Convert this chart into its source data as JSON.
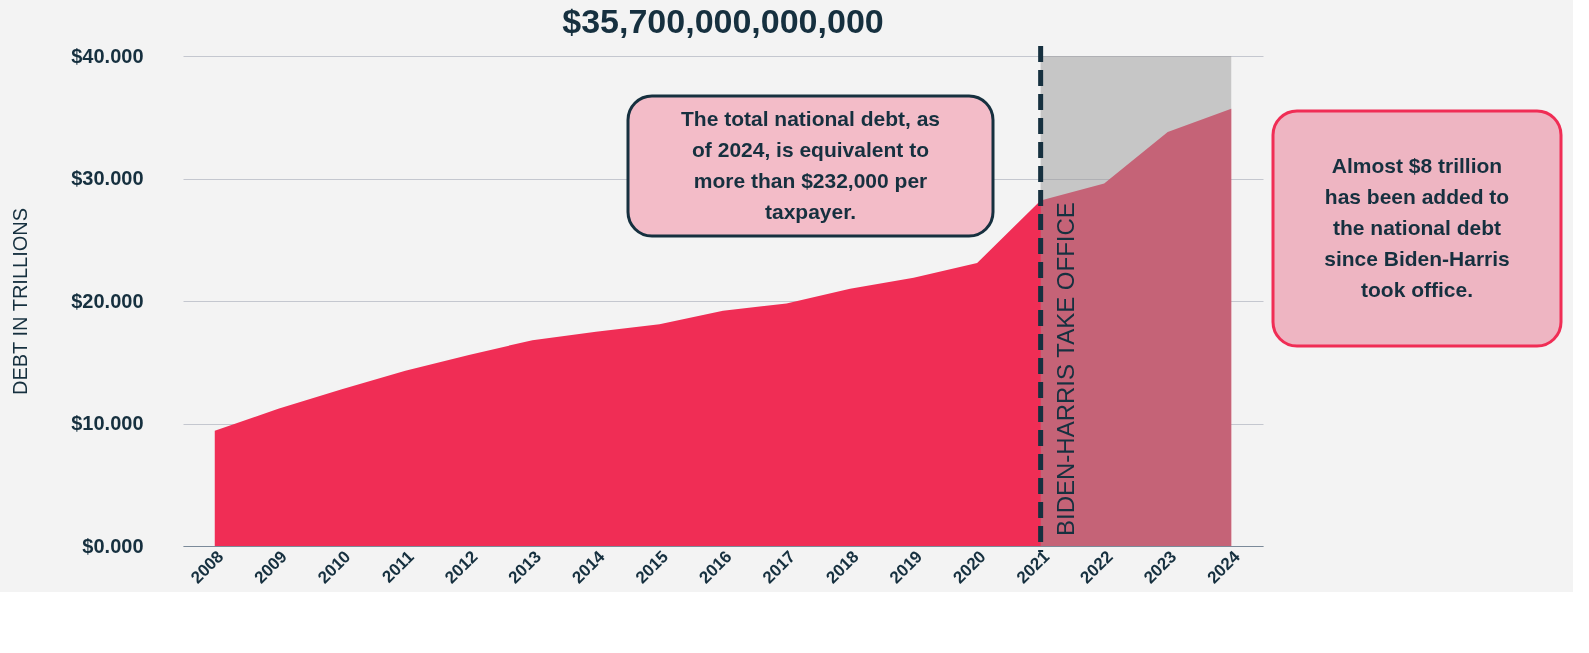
{
  "chart_data": {
    "type": "area",
    "title": "$35,700,000,000,000",
    "ylabel": "DEBT IN TRILLIONS",
    "categories": [
      "2008",
      "2009",
      "2010",
      "2011",
      "2012",
      "2013",
      "2014",
      "2015",
      "2016",
      "2017",
      "2018",
      "2019",
      "2020",
      "2021",
      "2022",
      "2023",
      "2024"
    ],
    "series": [
      {
        "color": "#f02d55",
        "values": [
          9.4,
          11.2,
          12.8,
          14.3,
          15.6,
          16.8,
          17.5,
          18.1,
          19.2,
          19.8,
          21.0,
          21.9,
          23.1,
          28.2,
          29.6,
          33.8,
          35.7
        ]
      }
    ],
    "ylim": [
      0,
      40
    ],
    "yticks": [
      {
        "value": 0,
        "label": "$0.000"
      },
      {
        "value": 10,
        "label": "$10.000"
      },
      {
        "value": 20,
        "label": "$20.000"
      },
      {
        "value": 30,
        "label": "$30.000"
      },
      {
        "value": 40,
        "label": "$40.000"
      }
    ],
    "grid": "y",
    "ref_lines": [
      {
        "axis": "x",
        "value": "2021",
        "label": "BIDEN-HARRIS TAKE OFFICE",
        "color": "#16303f",
        "line_style": "dashed"
      }
    ],
    "bands": [
      {
        "axis": "x",
        "from": "2021",
        "to": "2024",
        "color": "#9a9a9a"
      }
    ],
    "annotations": [
      "The total national debt, as of 2024, is equivalent to more than $232,000 per taxpayer.",
      "Almost $8 trillion has been added to the national debt since Biden-Harris took office."
    ]
  }
}
